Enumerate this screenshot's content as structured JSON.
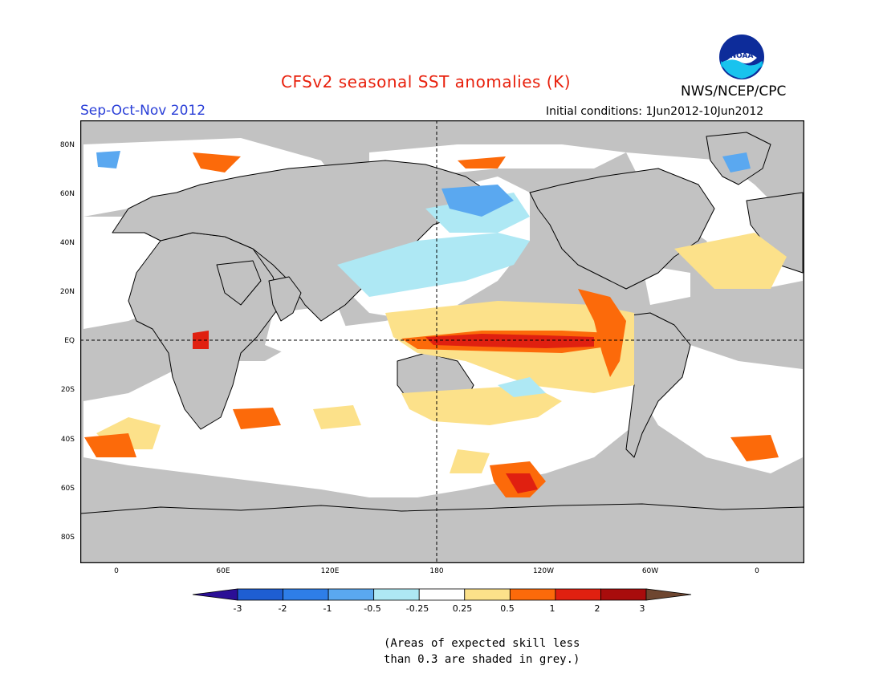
{
  "header": {
    "title": "CFSv2 seasonal SST anomalies (K)",
    "season": "Sep-Oct-Nov 2012",
    "initial_conditions": "Initial conditions: 1Jun2012-10Jun2012",
    "agency": "NWS/NCEP/CPC",
    "logo_text": "NOAA"
  },
  "map": {
    "lat_labels": [
      "80N",
      "60N",
      "40N",
      "20N",
      "EQ",
      "20S",
      "40S",
      "60S",
      "80S"
    ],
    "lon_labels": [
      "0",
      "60E",
      "120E",
      "180",
      "120W",
      "60W",
      "0"
    ]
  },
  "colorbar": {
    "labels": [
      "-3",
      "-2",
      "-1",
      "-0.5",
      "-0.25",
      "0.25",
      "0.5",
      "1",
      "2",
      "3"
    ],
    "colors": [
      "#2b0f96",
      "#1e5ed2",
      "#2e7ee8",
      "#5aa8f0",
      "#aee8f4",
      "#ffffff",
      "#fce18a",
      "#fc6a0a",
      "#e02010",
      "#a80c0c",
      "#6e4630"
    ]
  },
  "note": {
    "line1": "(Areas of expected skill less",
    "line2": "than 0.3 are shaded in grey.)"
  },
  "colors": {
    "grey_low_skill": "#c2c2c2",
    "title_red": "#e8200c",
    "season_blue": "#2a3fd8"
  }
}
